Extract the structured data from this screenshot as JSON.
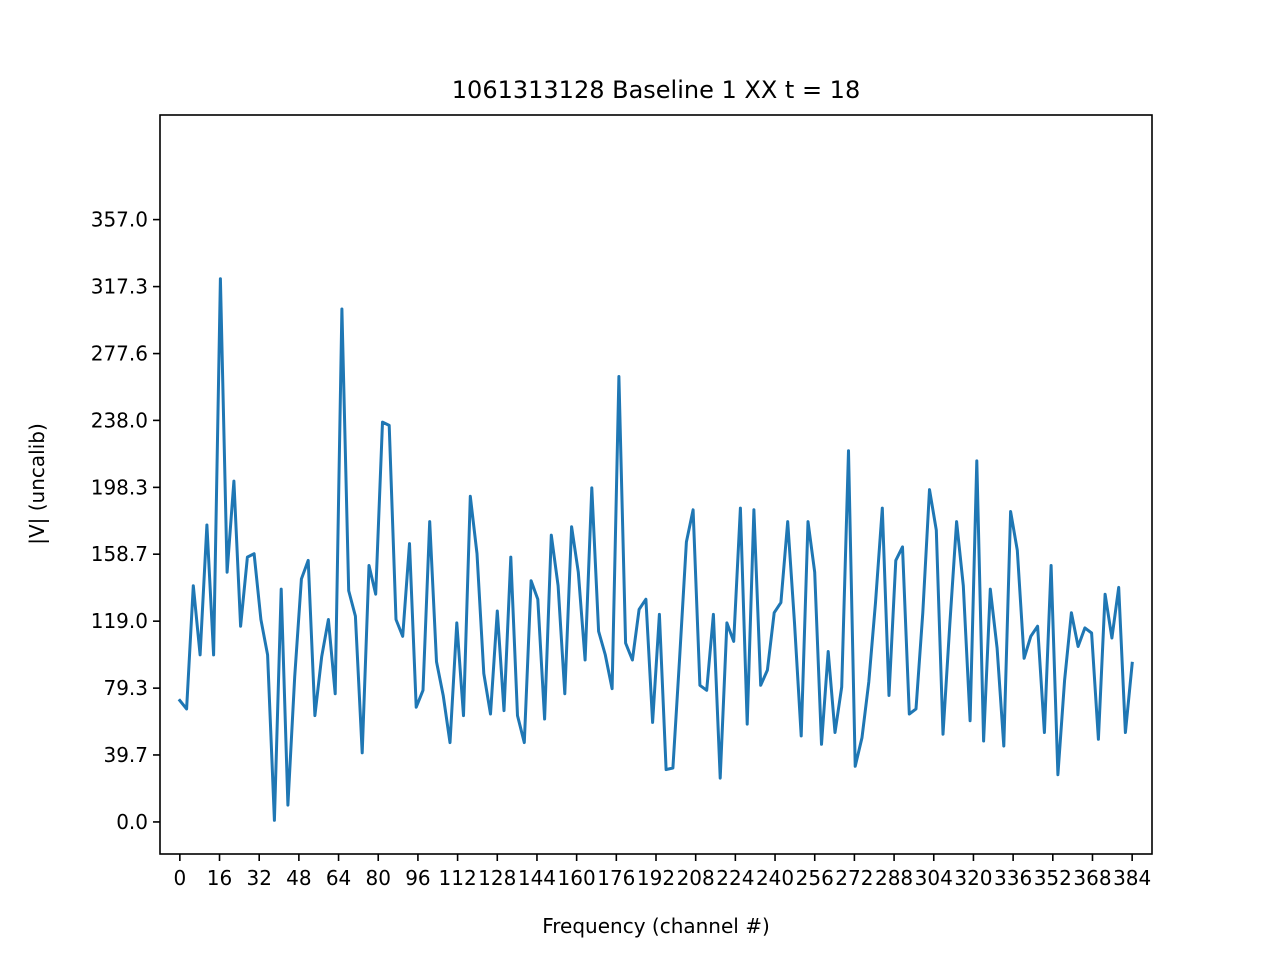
{
  "chart_data": {
    "type": "line",
    "title": "1061313128 Baseline 1 XX t = 18",
    "xlabel": "Frequency (channel #)",
    "ylabel": "|V| (uncalib)",
    "xlim": [
      -8,
      392
    ],
    "ylim": [
      -19,
      419
    ],
    "xticks": [
      0,
      16,
      32,
      48,
      64,
      80,
      96,
      112,
      128,
      144,
      160,
      176,
      192,
      208,
      224,
      240,
      256,
      272,
      288,
      304,
      320,
      336,
      352,
      368,
      384
    ],
    "xtick_labels": [
      "0",
      "16",
      "32",
      "48",
      "64",
      "80",
      "96",
      "112",
      "128",
      "144",
      "160",
      "176",
      "192",
      "208",
      "224",
      "240",
      "256",
      "272",
      "288",
      "304",
      "320",
      "336",
      "352",
      "368",
      "384"
    ],
    "yticks": [
      0.0,
      39.7,
      79.3,
      119.0,
      158.7,
      198.3,
      238.0,
      277.6,
      317.3,
      357.0
    ],
    "ytick_labels": [
      "0.0",
      "39.7",
      "79.3",
      "119.0",
      "158.7",
      "198.3",
      "238.0",
      "277.6",
      "317.3",
      "357.0"
    ],
    "grid": false,
    "color": "#1f77b4",
    "series": [
      {
        "values": [
          72,
          67,
          140,
          99,
          176,
          99,
          322,
          148,
          202,
          116,
          157,
          159,
          120,
          99,
          1,
          138,
          10,
          86,
          144,
          155,
          63,
          98,
          120,
          76,
          304,
          137,
          122,
          41,
          152,
          135,
          237,
          235,
          120,
          110,
          165,
          68,
          78,
          178,
          95,
          75,
          47,
          118,
          63,
          193,
          159,
          88,
          64,
          125,
          66,
          157,
          63,
          47,
          143,
          132,
          61,
          170,
          140,
          76,
          175,
          148,
          96,
          198,
          113,
          99,
          79,
          264,
          106,
          96,
          126,
          132,
          59,
          123,
          31,
          32,
          97,
          166,
          185,
          81,
          78,
          123,
          26,
          118,
          107,
          186,
          58,
          185,
          81,
          90,
          124,
          130,
          178,
          118,
          51,
          178,
          148,
          46,
          101,
          53,
          80,
          220,
          33,
          50,
          83,
          130,
          186,
          75,
          155,
          163,
          64,
          67,
          124,
          197,
          173,
          52,
          117,
          178,
          140,
          60,
          214,
          48,
          138,
          103,
          45,
          184,
          161,
          97,
          110,
          116,
          53,
          152,
          28,
          84,
          124,
          104,
          115,
          112,
          49,
          135,
          109,
          139,
          53,
          94
        ]
      }
    ]
  }
}
